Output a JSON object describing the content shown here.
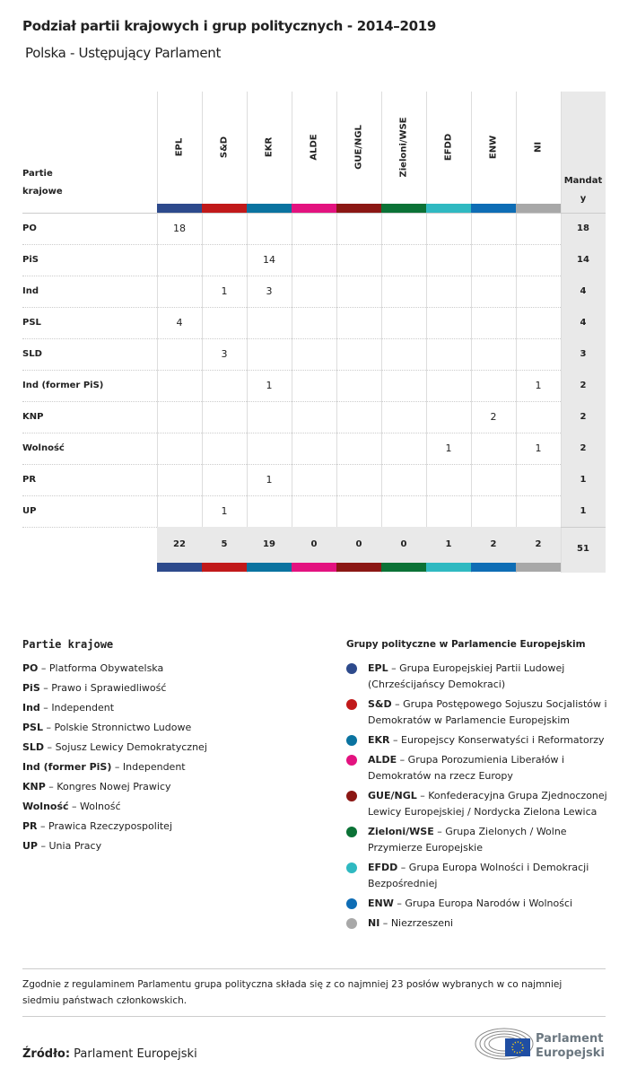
{
  "title": "Podział partii krajowych i grup politycznych - 2014–2019",
  "subtitle": "Polska - Ustępujący Parlament",
  "table": {
    "party_header": [
      "Partie",
      "krajowe"
    ],
    "total_header": [
      "Mandat",
      "y"
    ],
    "groups": [
      {
        "label": "EPL",
        "color": "#2d4a8c"
      },
      {
        "label": "S&D",
        "color": "#c1191a"
      },
      {
        "label": "EKR",
        "color": "#0a73a0"
      },
      {
        "label": "ALDE",
        "color": "#e3127f"
      },
      {
        "label": "GUE/NGL",
        "color": "#8b1714"
      },
      {
        "label": "Zieloni/WSE",
        "color": "#0b7236"
      },
      {
        "label": "EFDD",
        "color": "#2fb9c1"
      },
      {
        "label": "ENW",
        "color": "#0e6db5"
      },
      {
        "label": "NI",
        "color": "#a8a8a8"
      }
    ],
    "rows": [
      {
        "party": "PO",
        "cells": [
          "18",
          "",
          "",
          "",
          "",
          "",
          "",
          "",
          ""
        ],
        "total": "18"
      },
      {
        "party": "PiS",
        "cells": [
          "",
          "",
          "14",
          "",
          "",
          "",
          "",
          "",
          ""
        ],
        "total": "14"
      },
      {
        "party": "Ind",
        "cells": [
          "",
          "1",
          "3",
          "",
          "",
          "",
          "",
          "",
          ""
        ],
        "total": "4"
      },
      {
        "party": "PSL",
        "cells": [
          "4",
          "",
          "",
          "",
          "",
          "",
          "",
          "",
          ""
        ],
        "total": "4"
      },
      {
        "party": "SLD",
        "cells": [
          "",
          "3",
          "",
          "",
          "",
          "",
          "",
          "",
          ""
        ],
        "total": "3"
      },
      {
        "party": "Ind (former PiS)",
        "cells": [
          "",
          "",
          "1",
          "",
          "",
          "",
          "",
          "",
          "1"
        ],
        "total": "2"
      },
      {
        "party": "KNP",
        "cells": [
          "",
          "",
          "",
          "",
          "",
          "",
          "",
          "2",
          ""
        ],
        "total": "2"
      },
      {
        "party": "Wolność",
        "cells": [
          "",
          "",
          "",
          "",
          "",
          "",
          "1",
          "",
          "1"
        ],
        "total": "2"
      },
      {
        "party": "PR",
        "cells": [
          "",
          "",
          "1",
          "",
          "",
          "",
          "",
          "",
          ""
        ],
        "total": "1"
      },
      {
        "party": "UP",
        "cells": [
          "",
          "1",
          "",
          "",
          "",
          "",
          "",
          "",
          ""
        ],
        "total": "1"
      }
    ],
    "totals": [
      "22",
      "5",
      "19",
      "0",
      "0",
      "0",
      "1",
      "2",
      "2"
    ],
    "grand_total": "51"
  },
  "legend_parties": {
    "title": "Partie krajowe",
    "items": [
      {
        "abbr": "PO",
        "name": "Platforma Obywatelska"
      },
      {
        "abbr": "PiS",
        "name": "Prawo i Sprawiedliwość"
      },
      {
        "abbr": "Ind",
        "name": "Independent"
      },
      {
        "abbr": "PSL",
        "name": "Polskie Stronnictwo Ludowe"
      },
      {
        "abbr": "SLD",
        "name": "Sojusz Lewicy Demokratycznej"
      },
      {
        "abbr": "Ind (former PiS)",
        "name": "Independent"
      },
      {
        "abbr": "KNP",
        "name": "Kongres Nowej Prawicy"
      },
      {
        "abbr": "Wolność",
        "name": "Wolność"
      },
      {
        "abbr": "PR",
        "name": "Prawica Rzeczypospolitej"
      },
      {
        "abbr": "UP",
        "name": "Unia Pracy"
      }
    ]
  },
  "legend_groups": {
    "title": "Grupy polityczne w Parlamencie Europejskim",
    "items": [
      {
        "abbr": "EPL",
        "name": "Grupa Europejskiej Partii Ludowej (Chrześcijańscy Demokraci)",
        "color": "#2d4a8c"
      },
      {
        "abbr": "S&D",
        "name": "Grupa Postępowego Sojuszu Socjalistów i Demokratów w Parlamencie Europejskim",
        "color": "#c1191a"
      },
      {
        "abbr": "EKR",
        "name": "Europejscy Konserwatyści i Reformatorzy",
        "color": "#0a73a0"
      },
      {
        "abbr": "ALDE",
        "name": "Grupa Porozumienia Liberałów i Demokratów na rzecz Europy",
        "color": "#e3127f"
      },
      {
        "abbr": "GUE/NGL",
        "name": "Konfederacyjna Grupa Zjednoczonej Lewicy Europejskiej / Nordycka Zielona Lewica",
        "color": "#8b1714"
      },
      {
        "abbr": "Zieloni/WSE",
        "name": "Grupa Zielonych / Wolne Przymierze Europejskie",
        "color": "#0b7236"
      },
      {
        "abbr": "EFDD",
        "name": "Grupa Europa Wolności i Demokracji Bezpośredniej",
        "color": "#2fb9c1"
      },
      {
        "abbr": "ENW",
        "name": "Grupa Europa Narodów i Wolności",
        "color": "#0e6db5"
      },
      {
        "abbr": "NI",
        "name": "Niezrzeszeni",
        "color": "#a8a8a8"
      }
    ]
  },
  "note": "Zgodnie z regulaminem Parlamentu grupa polityczna składa się z co najmniej 23 posłów wybranych w co najmniej siedmiu państwach członkowskich.",
  "source": {
    "label": "Źródło:",
    "value": "Parlament Europejski"
  },
  "logo": {
    "text": [
      "Parlament",
      "Europejski"
    ]
  }
}
